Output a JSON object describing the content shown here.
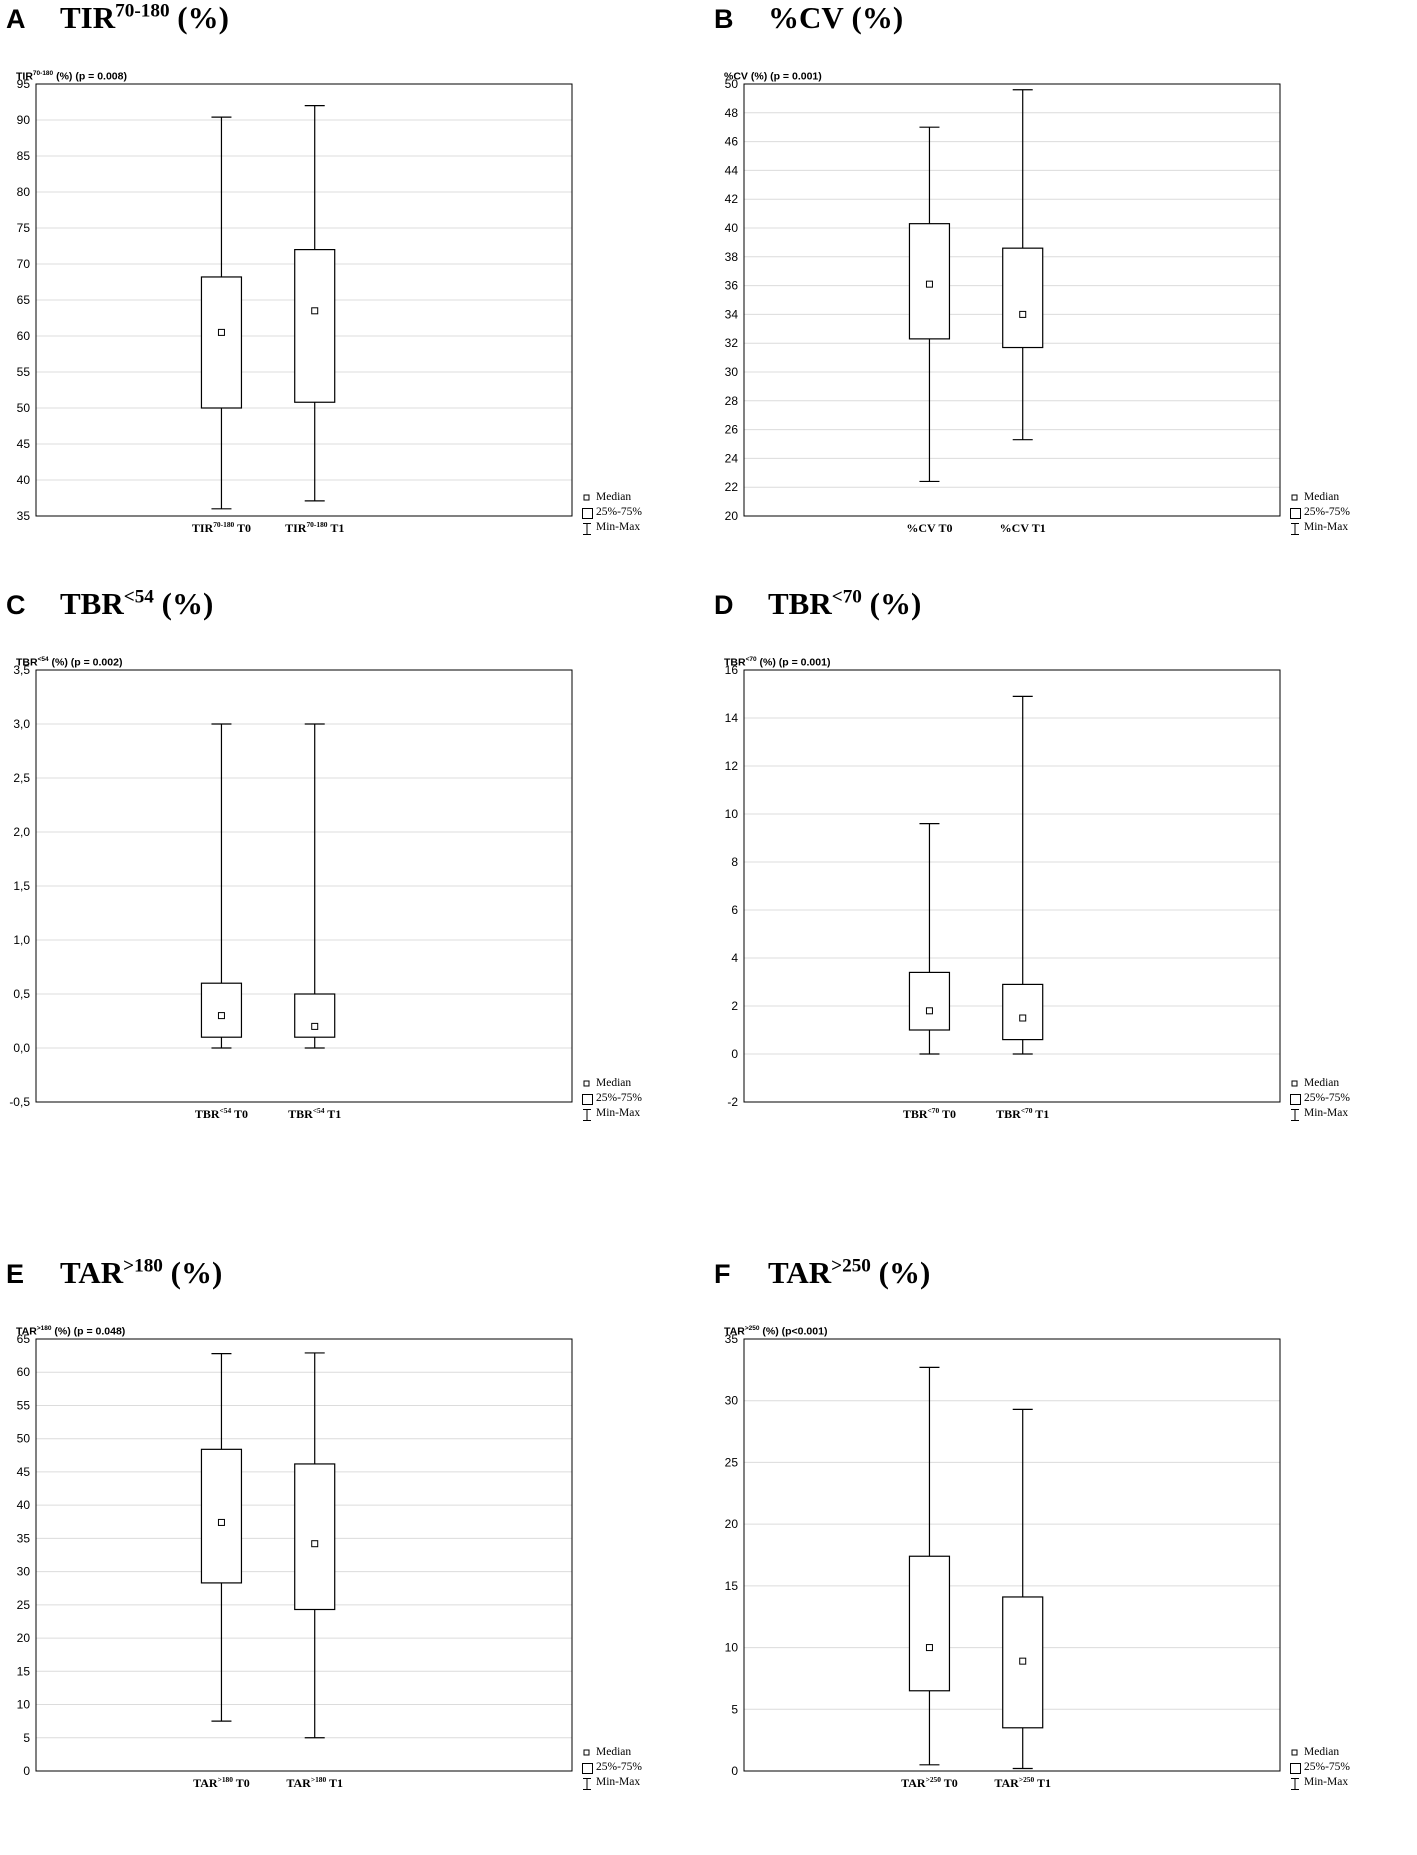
{
  "chart_data": [
    {
      "type": "box",
      "panel": "A",
      "title_main": "TIR",
      "title_sup": "70-180",
      "title_tail": " (%)",
      "subtitle_main": "TIR",
      "subtitle_sup": "70-180",
      "subtitle_tail": " (%) (p = 0.008)",
      "ylim": [
        35,
        95
      ],
      "yticks": [
        "35",
        "40",
        "45",
        "50",
        "55",
        "60",
        "65",
        "70",
        "75",
        "80",
        "85",
        "90",
        "95"
      ],
      "ystep": 5,
      "categories": [
        {
          "main": "TIR",
          "sup": "70-180",
          "tail": " T0"
        },
        {
          "main": "TIR",
          "sup": "70-180",
          "tail": " T1"
        }
      ],
      "boxes": [
        {
          "min": 36,
          "q1": 50,
          "median": 60.5,
          "q3": 68.2,
          "max": 90.4
        },
        {
          "min": 37.1,
          "q1": 50.8,
          "median": 63.5,
          "q3": 72,
          "max": 92
        }
      ],
      "grid": true,
      "legend": [
        "Median",
        "25%-75%",
        "Min-Max"
      ]
    },
    {
      "type": "box",
      "panel": "B",
      "title_main": "%CV",
      "title_sup": "",
      "title_tail": " (%)",
      "subtitle_main": "%CV",
      "subtitle_sup": "",
      "subtitle_tail": " (%) (p = 0.001)",
      "ylim": [
        20,
        50
      ],
      "yticks": [
        "20",
        "22",
        "24",
        "26",
        "28",
        "30",
        "32",
        "34",
        "36",
        "38",
        "40",
        "42",
        "44",
        "46",
        "48",
        "50"
      ],
      "ystep": 2,
      "categories": [
        {
          "main": "%CV",
          "sup": "",
          "tail": " T0"
        },
        {
          "main": "%CV",
          "sup": "",
          "tail": " T1"
        }
      ],
      "boxes": [
        {
          "min": 22.4,
          "q1": 32.3,
          "median": 36.1,
          "q3": 40.3,
          "max": 47
        },
        {
          "min": 25.3,
          "q1": 31.7,
          "median": 34,
          "q3": 38.6,
          "max": 49.6
        }
      ],
      "grid": true,
      "legend": [
        "Median",
        "25%-75%",
        "Min-Max"
      ]
    },
    {
      "type": "box",
      "panel": "C",
      "title_main": "TBR",
      "title_sup": "<54",
      "title_tail": " (%)",
      "subtitle_main": "TBR",
      "subtitle_sup": "<54",
      "subtitle_tail": " (%) (p = 0.002)",
      "ylim": [
        -0.5,
        3.5
      ],
      "yticks": [
        "-0,5",
        "0,0",
        "0,5",
        "1,0",
        "1,5",
        "2,0",
        "2,5",
        "3,0",
        "3,5"
      ],
      "ystep": 0.5,
      "categories": [
        {
          "main": "TBR",
          "sup": "<54",
          "tail": " T0"
        },
        {
          "main": "TBR",
          "sup": "<54",
          "tail": " T1"
        }
      ],
      "boxes": [
        {
          "min": 0,
          "q1": 0.1,
          "median": 0.3,
          "q3": 0.6,
          "max": 3
        },
        {
          "min": 0,
          "q1": 0.1,
          "median": 0.2,
          "q3": 0.5,
          "max": 3
        }
      ],
      "grid": true,
      "legend": [
        "Median",
        "25%-75%",
        "Min-Max"
      ]
    },
    {
      "type": "box",
      "panel": "D",
      "title_main": "TBR",
      "title_sup": "<70",
      "title_tail": " (%)",
      "subtitle_main": "TBR",
      "subtitle_sup": "<70",
      "subtitle_tail": " (%) (p = 0.001)",
      "ylim": [
        -2,
        16
      ],
      "yticks": [
        "-2",
        "0",
        "2",
        "4",
        "6",
        "8",
        "10",
        "12",
        "14",
        "16"
      ],
      "ystep": 2,
      "categories": [
        {
          "main": "TBR",
          "sup": "<70",
          "tail": " T0"
        },
        {
          "main": "TBR",
          "sup": "<70",
          "tail": " T1"
        }
      ],
      "boxes": [
        {
          "min": 0,
          "q1": 1,
          "median": 1.8,
          "q3": 3.4,
          "max": 9.6
        },
        {
          "min": 0,
          "q1": 0.6,
          "median": 1.5,
          "q3": 2.9,
          "max": 14.9
        }
      ],
      "grid": true,
      "legend": [
        "Median",
        "25%-75%",
        "Min-Max"
      ]
    },
    {
      "type": "box",
      "panel": "E",
      "title_main": "TAR",
      "title_sup": ">180",
      "title_tail": " (%)",
      "subtitle_main": "TAR",
      "subtitle_sup": ">180",
      "subtitle_tail": " (%) (p = 0.048)",
      "ylim": [
        0,
        65
      ],
      "yticks": [
        "0",
        "5",
        "10",
        "15",
        "20",
        "25",
        "30",
        "35",
        "40",
        "45",
        "50",
        "55",
        "60",
        "65"
      ],
      "ystep": 5,
      "categories": [
        {
          "main": "TAR",
          "sup": ">180",
          "tail": " T0"
        },
        {
          "main": "TAR",
          "sup": ">180",
          "tail": " T1"
        }
      ],
      "boxes": [
        {
          "min": 7.5,
          "q1": 28.3,
          "median": 37.4,
          "q3": 48.4,
          "max": 62.8
        },
        {
          "min": 5,
          "q1": 24.3,
          "median": 34.2,
          "q3": 46.2,
          "max": 62.9
        }
      ],
      "grid": true,
      "legend": [
        "Median",
        "25%-75%",
        "Min-Max"
      ]
    },
    {
      "type": "box",
      "panel": "F",
      "title_main": "TAR",
      "title_sup": ">250",
      "title_tail": " (%)",
      "subtitle_main": "TAR",
      "subtitle_sup": ">250",
      "subtitle_tail": " (%) (p<0.001)",
      "ylim": [
        0,
        35
      ],
      "yticks": [
        "0",
        "5",
        "10",
        "15",
        "20",
        "25",
        "30",
        "35"
      ],
      "ystep": 5,
      "categories": [
        {
          "main": "TAR",
          "sup": ">250",
          "tail": " T0"
        },
        {
          "main": "TAR",
          "sup": ">250",
          "tail": " T1"
        }
      ],
      "boxes": [
        {
          "min": 0.5,
          "q1": 6.5,
          "median": 10,
          "q3": 17.4,
          "max": 32.7
        },
        {
          "min": 0.2,
          "q1": 3.5,
          "median": 8.9,
          "q3": 14.1,
          "max": 29.3
        }
      ],
      "grid": true,
      "legend": [
        "Median",
        "25%-75%",
        "Min-Max"
      ]
    }
  ]
}
